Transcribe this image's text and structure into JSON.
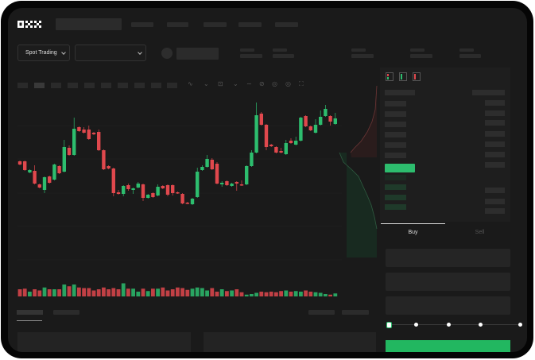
{
  "header": {
    "logo_text": "OKX"
  },
  "market_bar": {
    "trading_mode_label": "Spot Trading",
    "pair_dropdown_value": ""
  },
  "order_form": {
    "tabs": [
      {
        "label": "Buy",
        "active": true
      },
      {
        "label": "Sell",
        "active": false
      }
    ],
    "slider_percent": 0
  },
  "colors": {
    "up": "#2dbd6e",
    "down": "#e0484d",
    "screen_bg": "#1a1a1a",
    "panel_bg": "#1e1e1e"
  },
  "icons": [
    "chevron-down-icon",
    "indicator-icon",
    "draw-icon",
    "camera-icon",
    "settings-icon",
    "fullscreen-icon",
    "orderbook-both-icon",
    "orderbook-bids-icon",
    "orderbook-asks-icon"
  ],
  "chart_data": {
    "type": "candlestick",
    "fields": [
      "open",
      "high",
      "low",
      "close"
    ],
    "candles": [
      [
        97,
        98,
        92,
        93
      ],
      [
        97,
        98,
        85,
        86
      ],
      [
        83,
        87,
        82,
        86
      ],
      [
        85,
        92,
        68,
        69
      ],
      [
        68,
        69,
        63,
        64
      ],
      [
        61,
        78,
        57,
        77
      ],
      [
        78,
        79,
        69,
        70
      ],
      [
        74,
        94,
        73,
        93
      ],
      [
        91,
        92,
        81,
        82
      ],
      [
        84,
        124,
        83,
        115
      ],
      [
        114,
        117,
        104,
        105
      ],
      [
        105,
        152,
        104,
        138
      ],
      [
        140,
        141,
        134,
        135
      ],
      [
        137,
        140,
        132,
        133
      ],
      [
        137,
        142,
        124,
        125
      ],
      [
        133,
        134,
        130,
        131
      ],
      [
        134,
        137,
        110,
        111
      ],
      [
        111,
        112,
        86,
        87
      ],
      [
        91,
        92,
        87,
        88
      ],
      [
        88,
        89,
        53,
        57
      ],
      [
        58,
        61,
        55,
        56
      ],
      [
        56,
        67,
        53,
        66
      ],
      [
        67,
        69,
        60,
        62
      ],
      [
        61,
        64,
        56,
        63
      ],
      [
        64,
        71,
        63,
        69
      ],
      [
        68,
        69,
        47,
        51
      ],
      [
        51,
        56,
        50,
        55
      ],
      [
        57,
        58,
        51,
        52
      ],
      [
        54,
        68,
        53,
        65
      ],
      [
        66,
        67,
        62,
        63
      ],
      [
        67,
        68,
        53,
        55
      ],
      [
        67,
        68,
        54,
        57
      ],
      [
        58,
        59,
        56,
        57
      ],
      [
        56,
        57,
        43,
        44
      ],
      [
        45,
        46,
        43,
        44
      ],
      [
        43,
        51,
        42,
        50
      ],
      [
        52,
        89,
        51,
        84
      ],
      [
        86,
        92,
        85,
        90
      ],
      [
        90,
        105,
        89,
        100
      ],
      [
        99,
        101,
        86,
        87
      ],
      [
        94,
        96,
        68,
        69
      ],
      [
        68,
        72,
        65,
        70
      ],
      [
        72,
        73,
        66,
        67
      ],
      [
        66,
        70,
        65,
        69
      ],
      [
        71,
        72,
        60,
        69
      ],
      [
        68,
        73,
        66,
        67
      ],
      [
        68,
        92,
        67,
        91
      ],
      [
        91,
        111,
        90,
        108
      ],
      [
        108,
        171,
        107,
        155
      ],
      [
        157,
        159,
        142,
        143
      ],
      [
        143,
        144,
        111,
        115
      ],
      [
        118,
        119,
        115,
        116
      ],
      [
        115,
        116,
        107,
        108
      ],
      [
        110,
        114,
        107,
        108
      ],
      [
        106,
        124,
        105,
        120
      ],
      [
        123,
        126,
        119,
        120
      ],
      [
        118,
        128,
        117,
        123
      ],
      [
        123,
        153,
        122,
        152
      ],
      [
        154,
        155,
        140,
        141
      ],
      [
        141,
        142,
        135,
        136
      ],
      [
        133,
        150,
        132,
        143
      ],
      [
        143,
        161,
        142,
        153
      ],
      [
        154,
        168,
        153,
        163
      ],
      [
        154,
        155,
        142,
        147
      ],
      [
        144,
        158,
        143,
        151
      ]
    ],
    "volumes": [
      12,
      13,
      8,
      12,
      10,
      15,
      12,
      12,
      12,
      20,
      17,
      20,
      15,
      14,
      14,
      10,
      12,
      15,
      12,
      14,
      12,
      22,
      13,
      13,
      8,
      13,
      9,
      13,
      13,
      15,
      10,
      12,
      15,
      14,
      11,
      13,
      15,
      14,
      10,
      14,
      8,
      12,
      9,
      10,
      12,
      7,
      3,
      4,
      6,
      8,
      7,
      8,
      7,
      9,
      10,
      8,
      9,
      8,
      10,
      8,
      7,
      6,
      4,
      3,
      5
    ],
    "grid": true
  }
}
